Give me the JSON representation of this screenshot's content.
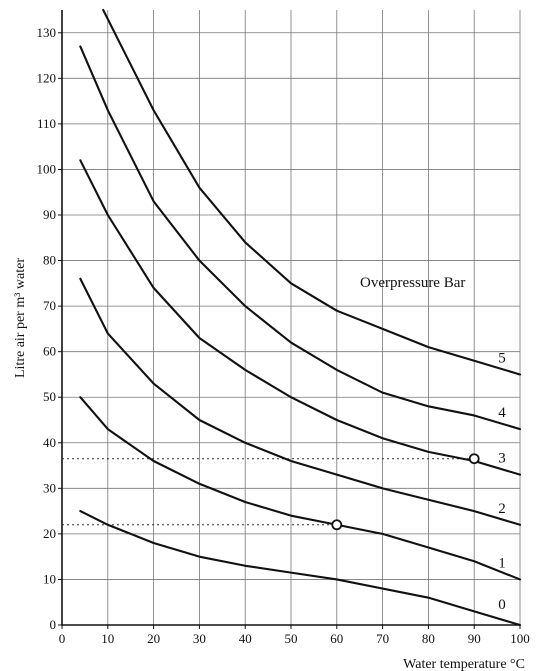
{
  "chart_data": {
    "type": "line",
    "title": "",
    "xlabel": "Water temperature °C",
    "ylabel": "Litre air per m³ water",
    "legend_title": "Overpressure Bar",
    "xlim": [
      0,
      100
    ],
    "ylim": [
      0,
      135
    ],
    "xticks": [
      0,
      10,
      20,
      30,
      40,
      50,
      60,
      70,
      80,
      90,
      100
    ],
    "yticks": [
      0,
      10,
      20,
      30,
      40,
      50,
      60,
      70,
      80,
      90,
      100,
      110,
      120,
      130
    ],
    "grid": true,
    "series": [
      {
        "name": "0",
        "x": [
          4,
          10,
          20,
          30,
          40,
          50,
          60,
          70,
          80,
          90,
          100
        ],
        "y": [
          25,
          22,
          18,
          15,
          13,
          11.5,
          10,
          8,
          6,
          3,
          0
        ]
      },
      {
        "name": "1",
        "x": [
          4,
          10,
          20,
          30,
          40,
          50,
          60,
          70,
          80,
          90,
          100
        ],
        "y": [
          50,
          43,
          36,
          31,
          27,
          24,
          22,
          20,
          17,
          14,
          10
        ]
      },
      {
        "name": "2",
        "x": [
          4,
          10,
          20,
          30,
          40,
          50,
          60,
          70,
          80,
          90,
          100
        ],
        "y": [
          76,
          64,
          53,
          45,
          40,
          36,
          33,
          30,
          27.5,
          25,
          22
        ]
      },
      {
        "name": "3",
        "x": [
          4,
          10,
          20,
          30,
          40,
          50,
          60,
          70,
          80,
          90,
          100
        ],
        "y": [
          102,
          90,
          74,
          63,
          56,
          50,
          45,
          41,
          38,
          36,
          33
        ]
      },
      {
        "name": "4",
        "x": [
          4,
          10,
          20,
          30,
          40,
          50,
          60,
          70,
          80,
          90,
          100
        ],
        "y": [
          127,
          113,
          93,
          80,
          70,
          62,
          56,
          51,
          48,
          46,
          43
        ]
      },
      {
        "name": "5",
        "x": [
          9,
          14,
          20,
          30,
          40,
          50,
          60,
          70,
          80,
          90,
          100
        ],
        "y": [
          135,
          125,
          113,
          96,
          84,
          75,
          69,
          65,
          61,
          58,
          55
        ]
      }
    ],
    "markers": [
      {
        "x": 60,
        "y": 22
      },
      {
        "x": 90,
        "y": 36.5
      }
    ],
    "reference_lines": [
      {
        "y": 22,
        "x_from": 0,
        "x_to": 60
      },
      {
        "y": 36.5,
        "x_from": 0,
        "x_to": 90
      }
    ]
  }
}
